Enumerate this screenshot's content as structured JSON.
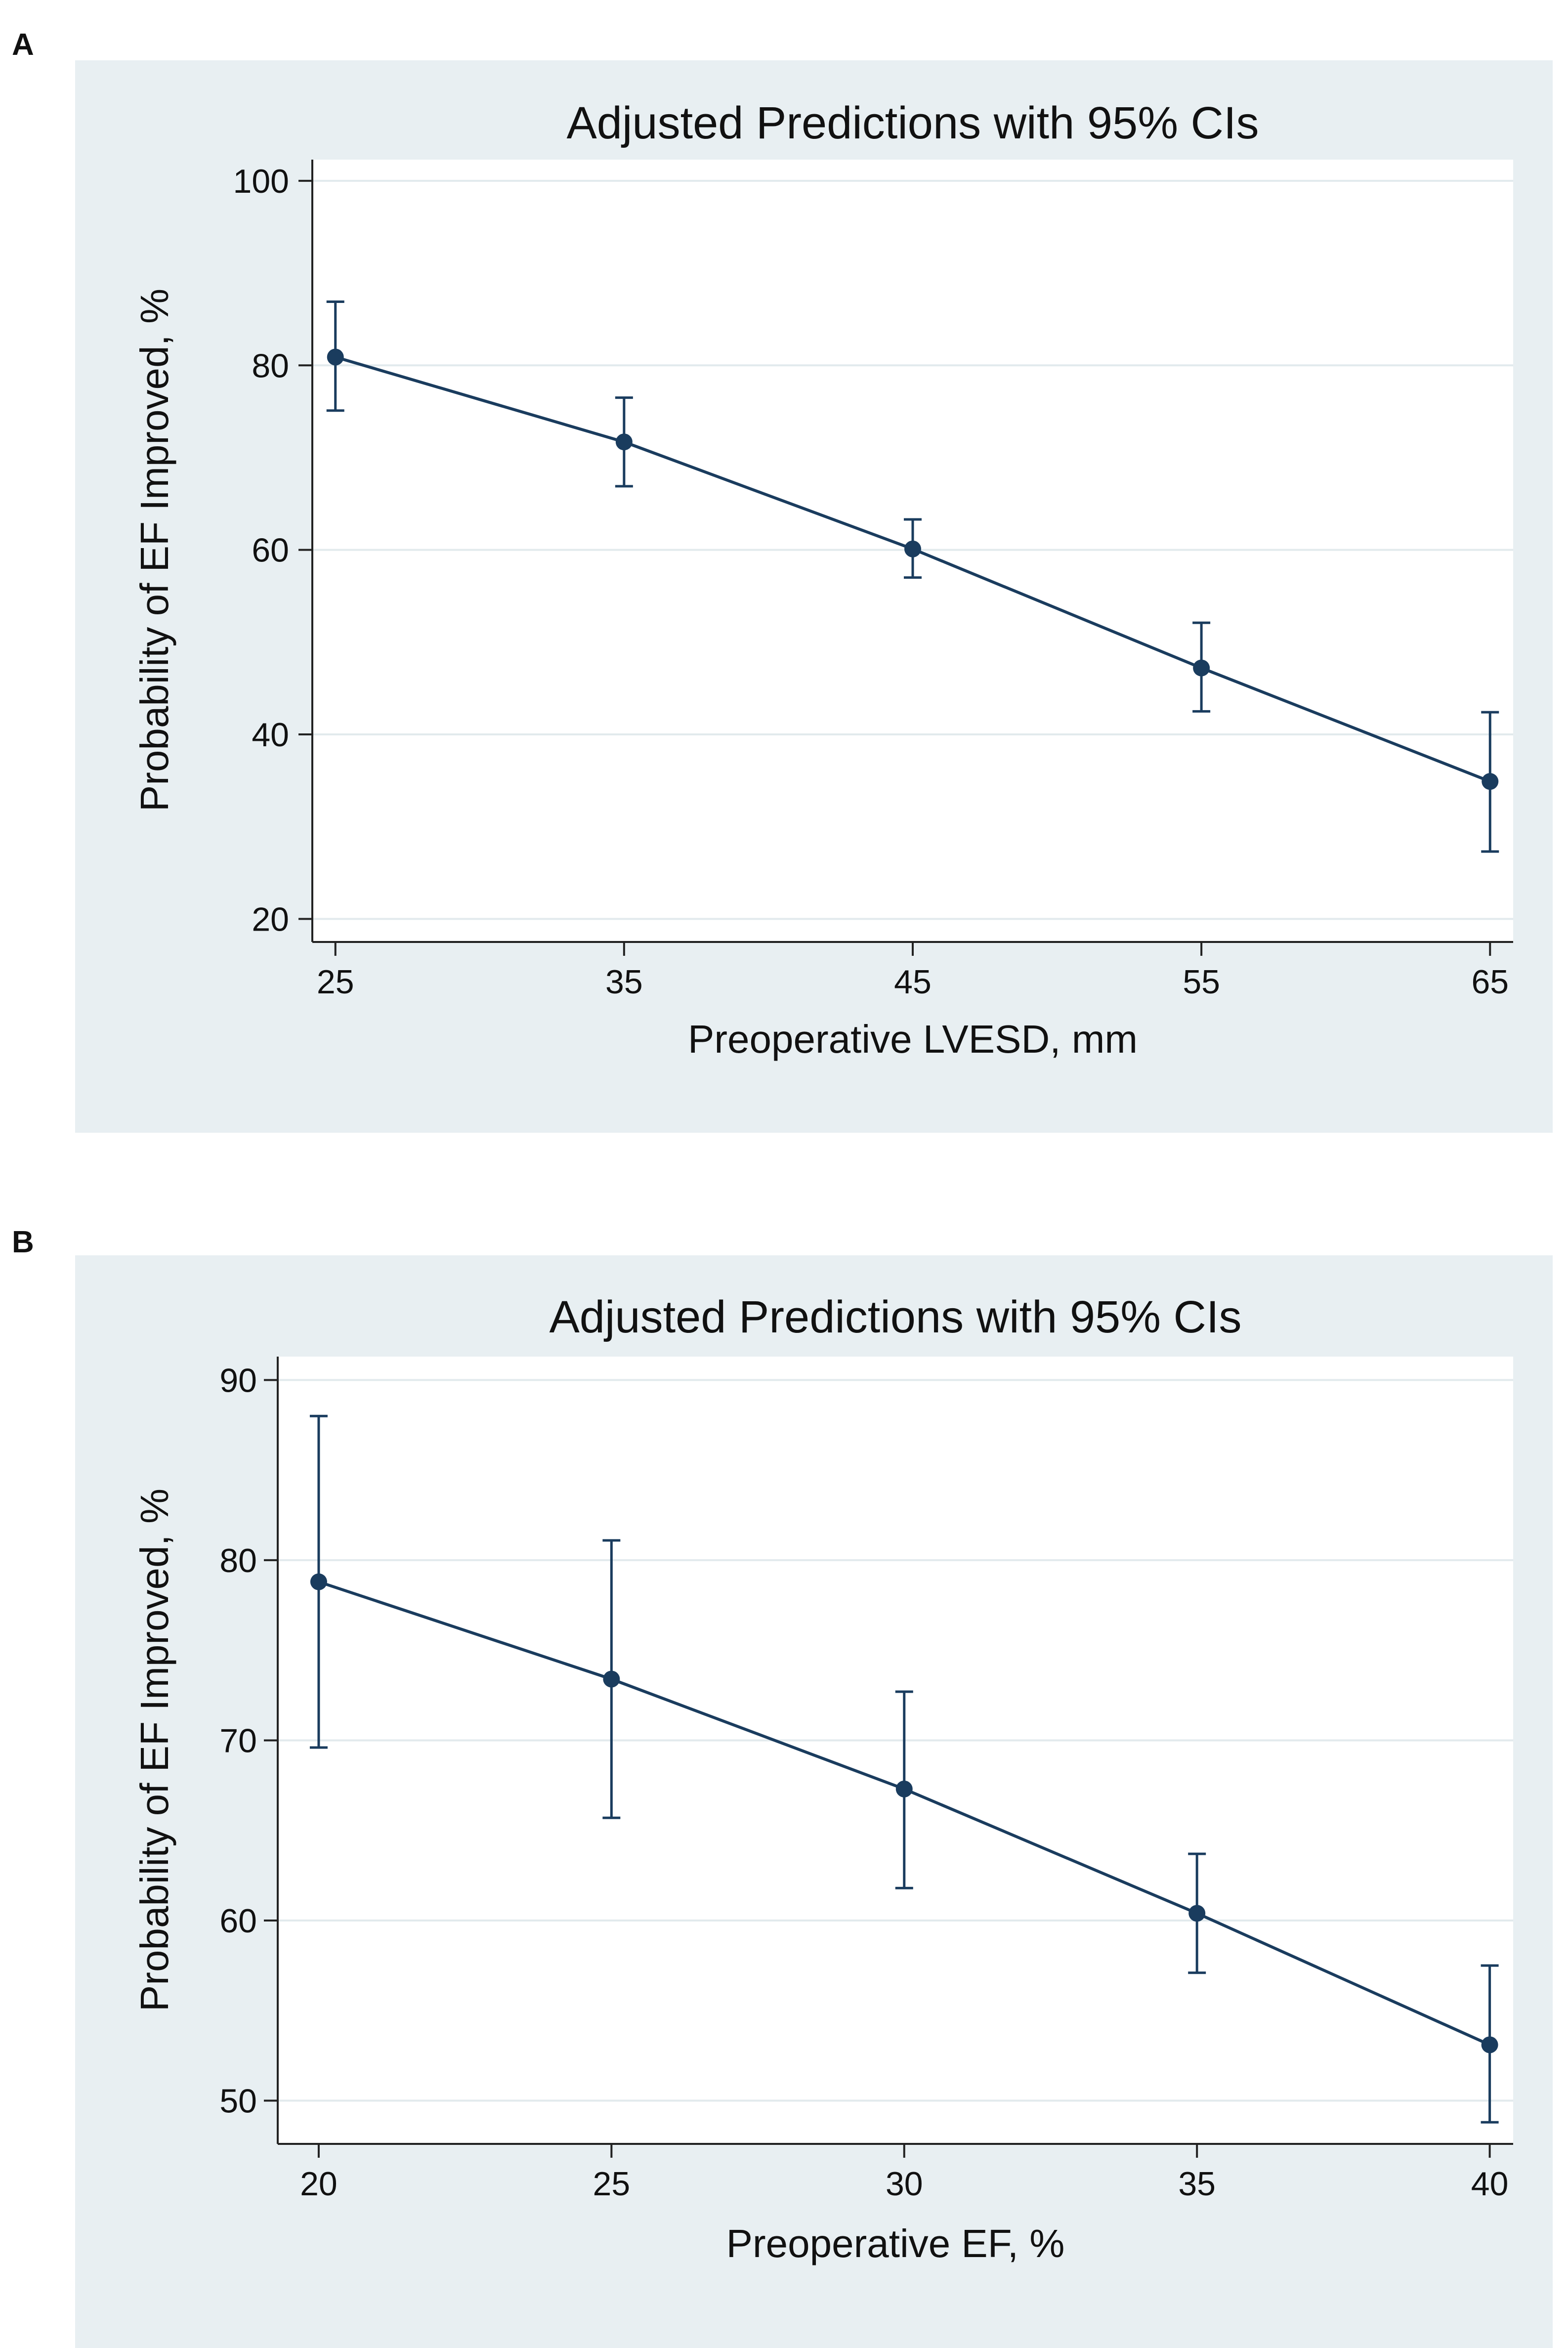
{
  "chart_data": [
    {
      "panel": "A",
      "type": "line",
      "title": "Adjusted Predictions with 95% CIs",
      "xlabel": "Preoperative LVESD, mm",
      "ylabel": "Probability of EF Improved, %",
      "x": [
        25,
        35,
        45,
        55,
        65
      ],
      "y": [
        80.9,
        71.7,
        60.1,
        47.2,
        34.9
      ],
      "ci_lower": [
        75.1,
        66.9,
        57.0,
        42.5,
        27.3
      ],
      "ci_upper": [
        86.9,
        76.5,
        63.3,
        52.1,
        42.4
      ],
      "xticks": [
        25,
        35,
        45,
        55,
        65
      ],
      "yticks": [
        20,
        40,
        60,
        80,
        100
      ],
      "xlim": [
        24.2,
        65.8
      ],
      "ylim": [
        17.5,
        102.3
      ],
      "grid": true,
      "colors": {
        "background": "#e8eff2",
        "plot": "#ffffff",
        "line": "#1a3c5e",
        "grid": "#e2eaed"
      }
    },
    {
      "panel": "B",
      "type": "line",
      "title": "Adjusted Predictions with 95% CIs",
      "xlabel": "Preoperative EF, %",
      "ylabel": "Probability of EF Improved, %",
      "x": [
        20,
        25,
        30,
        35,
        40
      ],
      "y": [
        78.8,
        73.4,
        67.3,
        60.4,
        53.1
      ],
      "ci_lower": [
        69.6,
        65.7,
        61.8,
        57.1,
        48.8
      ],
      "ci_upper": [
        88.0,
        81.1,
        72.7,
        63.7,
        57.5
      ],
      "xticks": [
        20,
        25,
        30,
        35,
        40
      ],
      "yticks": [
        50,
        60,
        70,
        80,
        90
      ],
      "xlim": [
        19.3,
        40.4
      ],
      "ylim": [
        47.6,
        91.3
      ],
      "grid": true,
      "colors": {
        "background": "#e8eff2",
        "plot": "#ffffff",
        "line": "#1a3c5e",
        "grid": "#e2eaed"
      }
    }
  ]
}
